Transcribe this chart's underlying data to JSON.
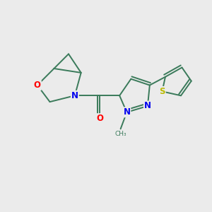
{
  "background_color": "#ebebeb",
  "bond_color": "#3a7a5a",
  "atom_colors": {
    "O": "#ff0000",
    "N": "#0000ee",
    "S": "#bbbb00",
    "C": "#3a7a5a"
  },
  "bond_width": 1.4,
  "figsize": [
    3.0,
    3.0
  ],
  "dpi": 100
}
